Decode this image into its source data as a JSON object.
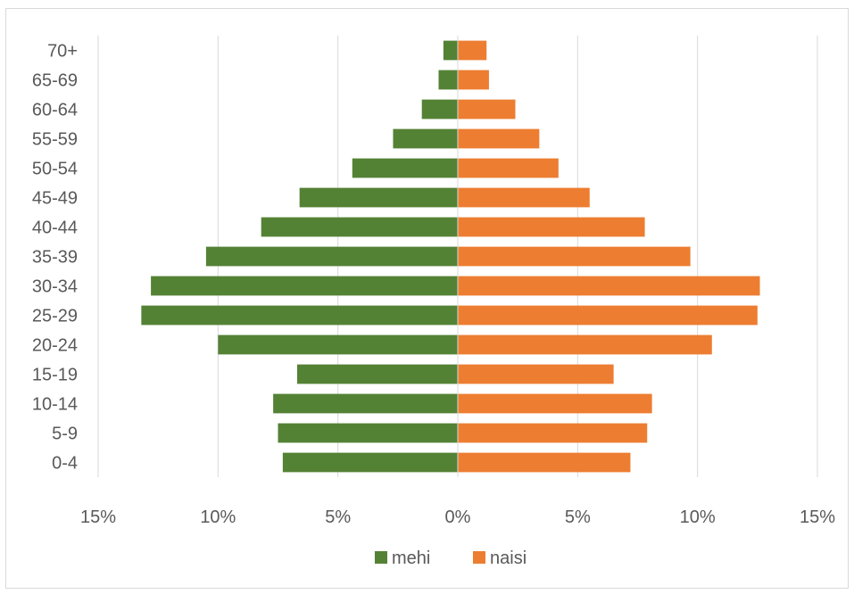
{
  "chart_data": {
    "type": "bar",
    "orientation": "horizontal",
    "title": "",
    "xlabel": "",
    "ylabel": "",
    "categories": [
      "0-4",
      "5-9",
      "10-14",
      "15-19",
      "20-24",
      "25-29",
      "30-34",
      "35-39",
      "40-44",
      "45-49",
      "50-54",
      "55-59",
      "60-64",
      "65-69",
      "70+"
    ],
    "series": [
      {
        "name": "mehi",
        "color": "#548235",
        "side": "left",
        "values": [
          7.3,
          7.5,
          7.7,
          6.7,
          10.0,
          13.2,
          12.8,
          10.5,
          8.2,
          6.6,
          4.4,
          2.7,
          1.5,
          0.8,
          0.6
        ]
      },
      {
        "name": "naisi",
        "color": "#ED7D31",
        "side": "right",
        "values": [
          7.2,
          7.9,
          8.1,
          6.5,
          10.6,
          12.5,
          12.6,
          9.7,
          7.8,
          5.5,
          4.2,
          3.4,
          2.4,
          1.3,
          1.2
        ]
      }
    ],
    "xlim": [
      -15,
      15
    ],
    "xticks": [
      -15,
      -10,
      -5,
      0,
      5,
      10,
      15
    ],
    "xtick_labels": [
      "15%",
      "10%",
      "5%",
      "0%",
      "5%",
      "10%",
      "15%"
    ],
    "grid": "vertical",
    "gridline_color": "#d9d9d9",
    "legend": "bottom"
  }
}
